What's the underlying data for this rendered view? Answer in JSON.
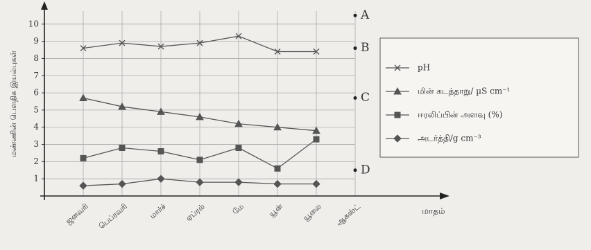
{
  "chart_data": {
    "type": "line",
    "y_label": "மண்ணின் பௌதிக இயல்புகள்",
    "x_label": "மாதம்",
    "categories": [
      "ஜனவரி",
      "பெப்ரவரி",
      "மார்ச்",
      "ஏப்ரல்",
      "மே",
      "யூன்",
      "யூலை",
      "ஆகஸ்ட்"
    ],
    "series": [
      {
        "name": "pH",
        "marker": "x",
        "color": "#555555",
        "values": [
          8.6,
          8.9,
          8.7,
          8.9,
          9.3,
          8.4,
          8.4,
          null
        ]
      },
      {
        "name": "மின் கடத்தாறு/ µS cm⁻¹",
        "marker": "triangle",
        "color": "#555555",
        "values": [
          5.7,
          5.2,
          4.9,
          4.6,
          4.2,
          4.0,
          3.8,
          null
        ]
      },
      {
        "name": "ஈரலிப்பின் அளவு (%)",
        "marker": "square",
        "color": "#555555",
        "values": [
          2.2,
          2.8,
          2.6,
          2.1,
          2.8,
          1.6,
          3.3,
          null
        ]
      },
      {
        "name": "அடர்த்தி/g cm⁻³",
        "marker": "diamond",
        "color": "#555555",
        "values": [
          0.6,
          0.7,
          1.0,
          0.8,
          0.8,
          0.7,
          0.7,
          null
        ]
      }
    ],
    "annotations": [
      {
        "label": "A",
        "category": 7,
        "value": 10.5
      },
      {
        "label": "B",
        "category": 7,
        "value": 8.6
      },
      {
        "label": "C",
        "category": 7,
        "value": 5.7
      },
      {
        "label": "D",
        "category": 7,
        "value": 1.5
      }
    ],
    "ylim": [
      0,
      11
    ],
    "yticks": [
      1,
      2,
      3,
      4,
      5,
      6,
      7,
      8,
      9,
      10
    ],
    "grid": true
  }
}
